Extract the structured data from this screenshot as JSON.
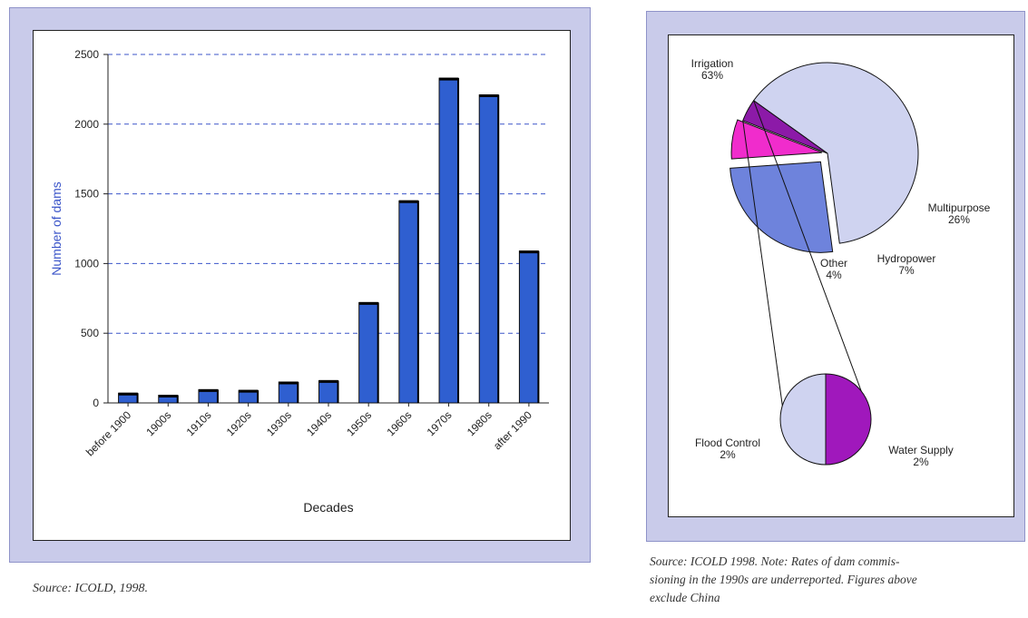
{
  "chart_data": [
    {
      "type": "bar",
      "xlabel": "Decades",
      "ylabel": "Number of dams",
      "ylim": [
        0,
        2500
      ],
      "yticks": [
        "0",
        "500",
        "1000",
        "1500",
        "2000",
        "2500"
      ],
      "ytick_values": [
        0,
        500,
        1000,
        1500,
        2000,
        2500
      ],
      "grid": "dashed horizontal",
      "categories": [
        "before 1900",
        "1900s",
        "1910s",
        "1920s",
        "1930s",
        "1940s",
        "1950s",
        "1960s",
        "1970s",
        "1980s",
        "after 1990"
      ],
      "values": [
        70,
        55,
        95,
        90,
        150,
        160,
        720,
        1450,
        2330,
        2210,
        1090
      ],
      "color": "#2f5fd0"
    },
    {
      "type": "pie",
      "slices": [
        {
          "label": "Irrigation",
          "pct_label": "63%",
          "value": 63,
          "color": "#cfd3f0"
        },
        {
          "label": "Multipurpose",
          "pct_label": "26%",
          "value": 26,
          "color": "#6e83dc"
        },
        {
          "label": "Hydropower",
          "pct_label": "7%",
          "value": 7,
          "color": "#f02ccc"
        },
        {
          "label": "Other",
          "pct_label": "4%",
          "value": 4,
          "color": "#8c1aa8"
        }
      ],
      "breakdown_of": "Other",
      "breakdown": [
        {
          "label": "Flood Control",
          "pct_label": "2%",
          "value": 2,
          "color": "#cfd3f0"
        },
        {
          "label": "Water Supply",
          "pct_label": "2%",
          "value": 2,
          "color": "#a018bc"
        }
      ]
    }
  ],
  "captions": {
    "left": "Source: ICOLD, 1998.",
    "right_line1": "Source: ICOLD 1998. Note: Rates of dam commis-",
    "right_line2": "sioning in the 1990s are underreported. Figures above",
    "right_line3": "exclude China"
  }
}
